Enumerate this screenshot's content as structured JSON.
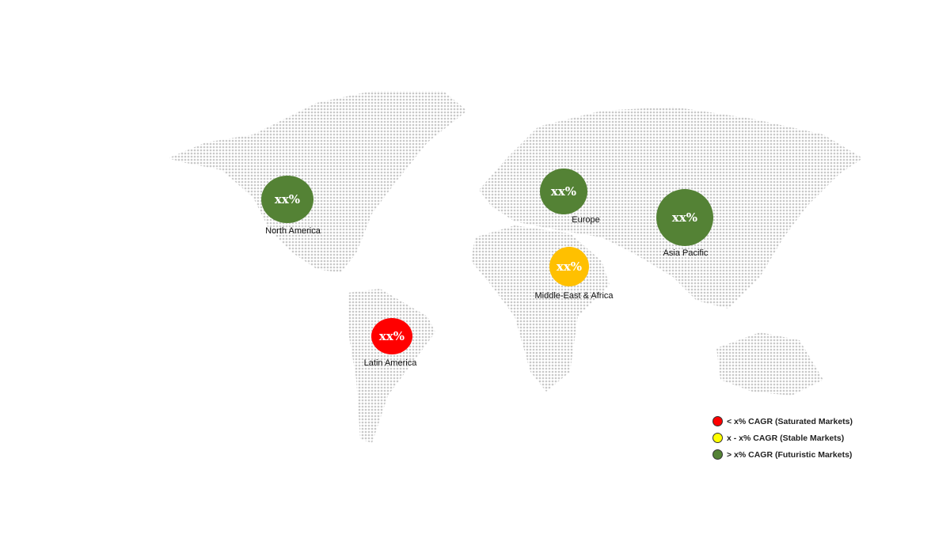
{
  "regions": [
    {
      "name": "North America",
      "value": "xx%",
      "color": "#548235"
    },
    {
      "name": "Europe",
      "value": "xx%",
      "color": "#548235"
    },
    {
      "name": "Asia Pacific",
      "value": "xx%",
      "color": "#548235"
    },
    {
      "name": "Middle-East & Africa",
      "value": "xx%",
      "color": "#ffc000"
    },
    {
      "name": "Latin America",
      "value": "xx%",
      "color": "#ff0000"
    }
  ],
  "legend": [
    {
      "label": "< x% CAGR (Saturated Markets)",
      "color": "#ff0000"
    },
    {
      "label": "x - x% CAGR (Stable Markets)",
      "color": "#ffff00"
    },
    {
      "label": "> x% CAGR (Futuristic Markets)",
      "color": "#548235"
    }
  ],
  "map_dot_color": "#c8c8c8"
}
